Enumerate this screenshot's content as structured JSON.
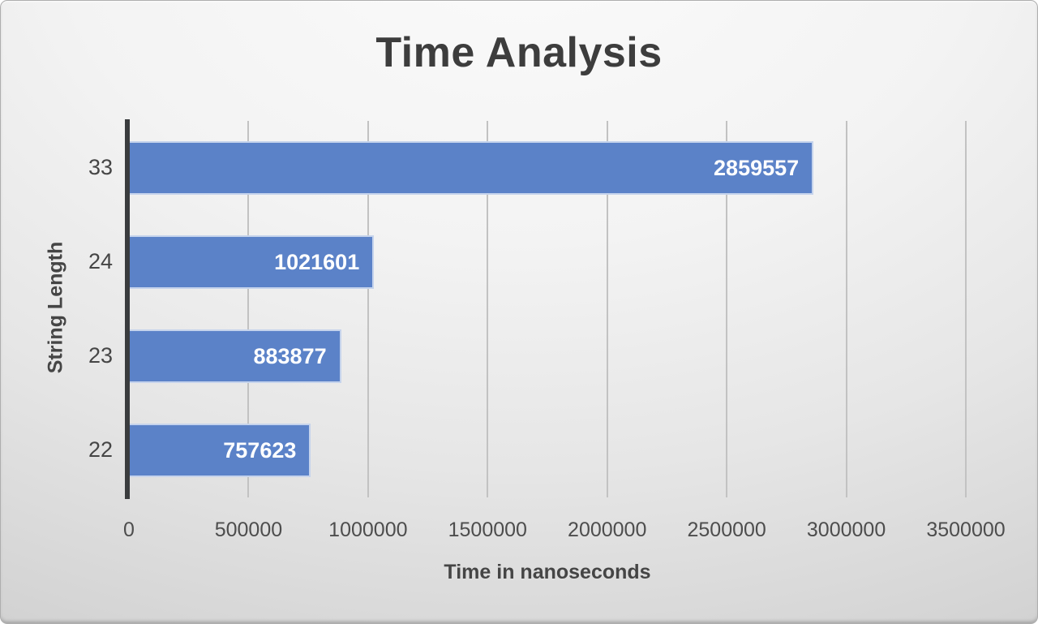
{
  "colors": {
    "bar_fill": "#5b82c8",
    "bar_border": "rgba(255,255,255,0.65)",
    "gridline": "#c2c2c2",
    "axis_line": "#3a3c3e",
    "title_text": "#3d3d3d",
    "tick_text": "#4d4d4d",
    "data_label_text": "#ffffff"
  },
  "chart_data": {
    "type": "bar",
    "orientation": "horizontal",
    "title": "Time Analysis",
    "xlabel": "Time in nanoseconds",
    "ylabel": "String Length",
    "categories": [
      "33",
      "24",
      "23",
      "22"
    ],
    "values": [
      2859557,
      1021601,
      883877,
      757623
    ],
    "data_labels": [
      "2859557",
      "1021601",
      "883877",
      "757623"
    ],
    "xlim": [
      0,
      3500000
    ],
    "xticks": [
      0,
      500000,
      1000000,
      1500000,
      2000000,
      2500000,
      3000000,
      3500000
    ],
    "xtick_labels": [
      "0",
      "500000",
      "1000000",
      "1500000",
      "2000000",
      "2500000",
      "3000000",
      "3500000"
    ],
    "grid": true,
    "legend": "none"
  }
}
